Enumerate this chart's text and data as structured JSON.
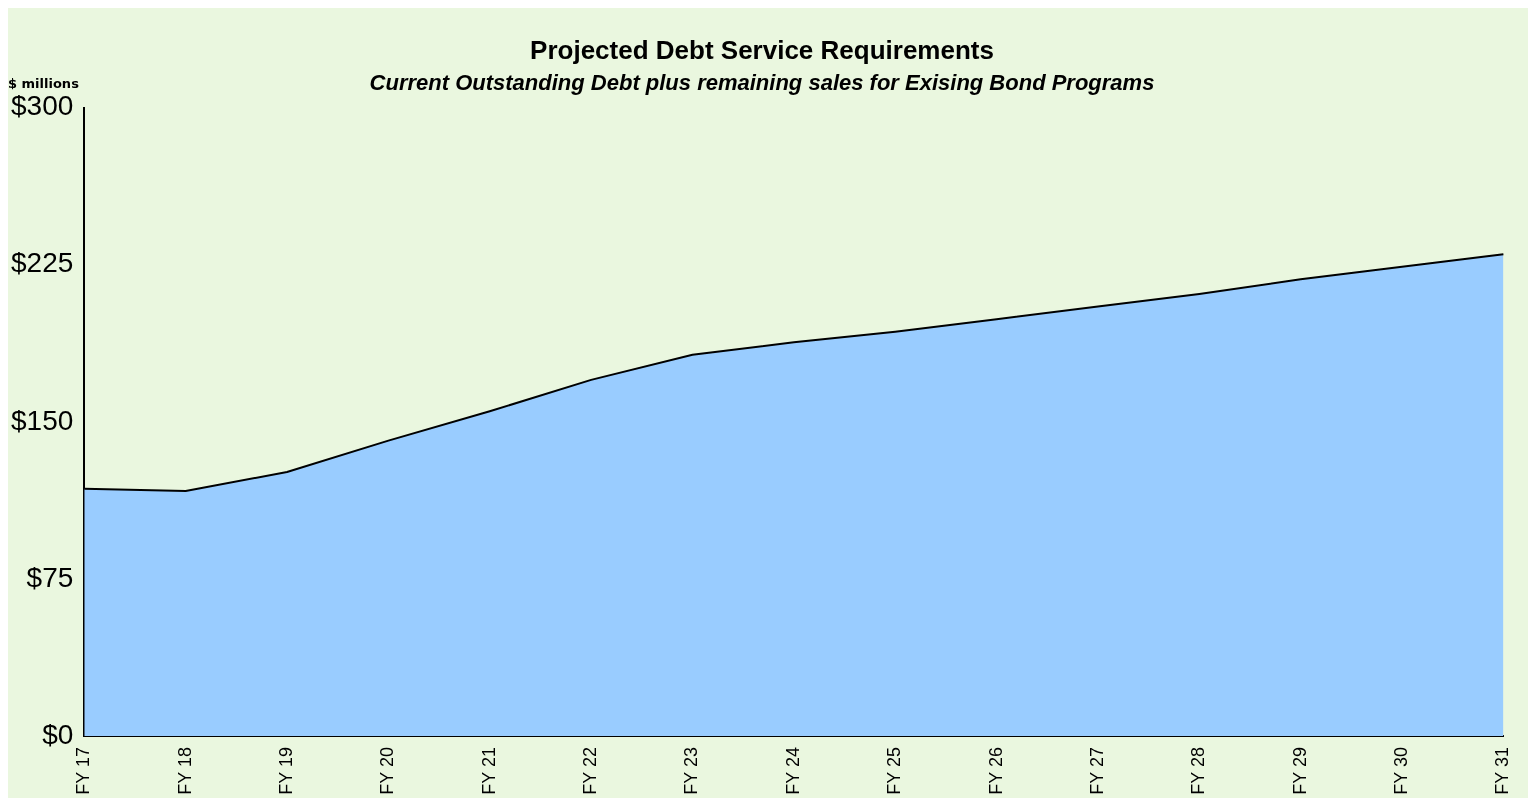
{
  "chart_data": {
    "type": "area",
    "title": "Projected Debt Service Requirements",
    "subtitle": "Current Outstanding Debt plus remaining sales for Exising Bond Programs",
    "ylabel": "$ millions",
    "categories": [
      "FY 17",
      "FY 18",
      "FY 19",
      "FY 20",
      "FY 21",
      "FY 22",
      "FY 23",
      "FY 24",
      "FY 25",
      "FY 26",
      "FY 27",
      "FY 28",
      "FY 29",
      "FY 30",
      "FY 31"
    ],
    "series": [
      {
        "color": "#99ccff",
        "values": [
          118,
          117,
          126,
          141,
          155,
          170,
          182,
          188,
          193,
          199,
          205,
          211,
          218,
          224,
          230
        ]
      }
    ],
    "ylim": [
      0,
      300
    ],
    "yticks": [
      {
        "value": 0,
        "label": "$0"
      },
      {
        "value": 75,
        "label": "$75"
      },
      {
        "value": 150,
        "label": "$150"
      },
      {
        "value": 225,
        "label": "$225"
      },
      {
        "value": 300,
        "label": "$300"
      }
    ],
    "grid": false,
    "legend": false
  }
}
